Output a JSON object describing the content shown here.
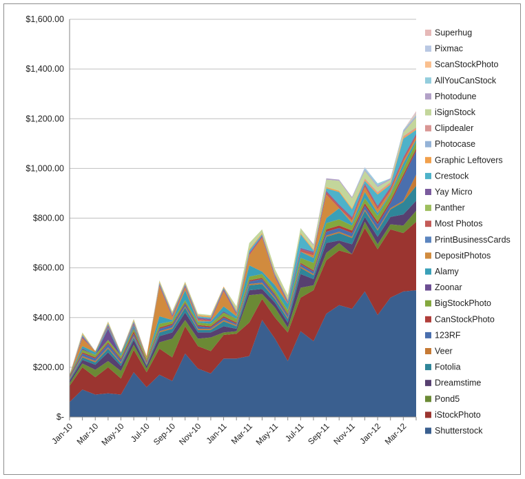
{
  "chart_data": {
    "type": "area",
    "stacked": true,
    "title": "",
    "xlabel": "",
    "ylabel": "",
    "ylim": [
      0,
      1600
    ],
    "yticks": [
      {
        "v": 0,
        "label": "$-"
      },
      {
        "v": 200,
        "label": "$200.00"
      },
      {
        "v": 400,
        "label": "$400.00"
      },
      {
        "v": 600,
        "label": "$600.00"
      },
      {
        "v": 800,
        "label": "$800.00"
      },
      {
        "v": 1000,
        "label": "$1,000.00"
      },
      {
        "v": 1200,
        "label": "$1,200.00"
      },
      {
        "v": 1400,
        "label": "$1,400.00"
      },
      {
        "v": 1600,
        "label": "$1,600.00"
      }
    ],
    "grid": "horizontal",
    "legend_position": "right",
    "x": [
      "Jan-10",
      "Feb-10",
      "Mar-10",
      "Apr-10",
      "May-10",
      "Jun-10",
      "Jul-10",
      "Aug-10",
      "Sep-10",
      "Oct-10",
      "Nov-10",
      "Dec-10",
      "Jan-11",
      "Feb-11",
      "Mar-11",
      "Apr-11",
      "May-11",
      "Jun-11",
      "Jul-11",
      "Aug-11",
      "Sep-11",
      "Oct-11",
      "Nov-11",
      "Dec-11",
      "Jan-12",
      "Feb-12",
      "Mar-12",
      "Apr-12"
    ],
    "xtick_labels": [
      "Jan-10",
      "Mar-10",
      "May-10",
      "Jul-10",
      "Sep-10",
      "Nov-10",
      "Jan-11",
      "Mar-11",
      "May-11",
      "Jul-11",
      "Sep-11",
      "Nov-11",
      "Jan-12",
      "Mar-12"
    ],
    "series": [
      {
        "name": "Shutterstock",
        "color": "#3a5f8f",
        "values": [
          60,
          110,
          90,
          95,
          90,
          180,
          120,
          170,
          145,
          255,
          195,
          175,
          235,
          235,
          245,
          390,
          315,
          225,
          345,
          305,
          415,
          450,
          435,
          505,
          410,
          480,
          505,
          510
        ]
      },
      {
        "name": "iStockPhoto",
        "color": "#9b3530",
        "values": [
          65,
          90,
          70,
          105,
          65,
          90,
          60,
          105,
          95,
          110,
          90,
          90,
          95,
          100,
          135,
          85,
          85,
          115,
          135,
          205,
          215,
          220,
          220,
          255,
          265,
          275,
          235,
          275
        ]
      },
      {
        "name": "Pond5",
        "color": "#6b8a35",
        "values": [
          10,
          15,
          30,
          25,
          30,
          20,
          15,
          25,
          75,
          25,
          30,
          55,
          10,
          10,
          110,
          20,
          40,
          20,
          40,
          20,
          30,
          30,
          0,
          25,
          20,
          20,
          30,
          45
        ]
      },
      {
        "name": "Dreamstime",
        "color": "#574070",
        "values": [
          10,
          15,
          20,
          35,
          20,
          20,
          10,
          25,
          25,
          30,
          25,
          20,
          25,
          10,
          20,
          20,
          20,
          20,
          55,
          25,
          40,
          10,
          40,
          20,
          30,
          30,
          45,
          40
        ]
      },
      {
        "name": "Fotolia",
        "color": "#2f8599",
        "values": [
          5,
          10,
          10,
          15,
          10,
          10,
          5,
          15,
          15,
          20,
          10,
          10,
          20,
          10,
          20,
          20,
          15,
          15,
          25,
          15,
          25,
          30,
          25,
          25,
          25,
          30,
          50,
          60
        ]
      },
      {
        "name": "Veer",
        "color": "#c67a35",
        "values": [
          5,
          5,
          5,
          5,
          5,
          5,
          5,
          5,
          5,
          5,
          5,
          5,
          5,
          5,
          5,
          5,
          5,
          5,
          5,
          5,
          5,
          5,
          5,
          5,
          5,
          5,
          5,
          45
        ]
      },
      {
        "name": "123RF",
        "color": "#4a6fae",
        "values": [
          5,
          10,
          10,
          15,
          10,
          10,
          5,
          10,
          10,
          10,
          10,
          5,
          10,
          5,
          10,
          15,
          10,
          10,
          10,
          10,
          15,
          15,
          15,
          15,
          20,
          20,
          95,
          95
        ]
      },
      {
        "name": "CanStockPhoto",
        "color": "#b03e3a",
        "values": [
          5,
          5,
          5,
          5,
          5,
          10,
          5,
          5,
          5,
          5,
          5,
          5,
          5,
          5,
          5,
          5,
          5,
          5,
          5,
          5,
          10,
          10,
          10,
          10,
          10,
          10,
          10,
          10
        ]
      },
      {
        "name": "BigStockPhoto",
        "color": "#84a83e",
        "values": [
          5,
          10,
          10,
          10,
          10,
          10,
          10,
          15,
          10,
          10,
          10,
          10,
          15,
          15,
          15,
          15,
          15,
          15,
          20,
          30,
          25,
          25,
          20,
          20,
          25,
          25,
          25,
          25
        ]
      },
      {
        "name": "Zoonar",
        "color": "#6c4e92",
        "values": [
          0,
          5,
          0,
          45,
          0,
          5,
          0,
          0,
          0,
          0,
          0,
          0,
          5,
          0,
          0,
          0,
          0,
          0,
          0,
          0,
          0,
          0,
          0,
          0,
          0,
          0,
          0,
          0
        ]
      },
      {
        "name": "Alamy",
        "color": "#3aa0b8",
        "values": [
          0,
          10,
          10,
          5,
          10,
          10,
          0,
          30,
          5,
          40,
          5,
          10,
          20,
          10,
          45,
          10,
          20,
          25,
          25,
          20,
          20,
          45,
          10,
          25,
          10,
          5,
          20,
          10
        ]
      },
      {
        "name": "DepositPhotos",
        "color": "#d18b3e",
        "values": [
          0,
          30,
          5,
          0,
          5,
          0,
          10,
          120,
          10,
          10,
          5,
          0,
          60,
          5,
          40,
          135,
          30,
          0,
          0,
          10,
          95,
          0,
          10,
          20,
          15,
          10,
          10,
          10
        ]
      },
      {
        "name": "PrintBusinessCards",
        "color": "#5c85bf",
        "values": [
          0,
          0,
          0,
          0,
          0,
          0,
          0,
          0,
          0,
          0,
          0,
          0,
          0,
          0,
          0,
          0,
          0,
          0,
          0,
          0,
          0,
          0,
          0,
          0,
          0,
          0,
          0,
          0
        ]
      },
      {
        "name": "Most Photos",
        "color": "#c45b58",
        "values": [
          0,
          5,
          0,
          5,
          0,
          5,
          0,
          5,
          5,
          5,
          5,
          5,
          5,
          5,
          5,
          5,
          5,
          5,
          10,
          10,
          10,
          10,
          10,
          10,
          10,
          10,
          10,
          10
        ]
      },
      {
        "name": "Panther",
        "color": "#9ebf5e",
        "values": [
          0,
          0,
          0,
          0,
          0,
          0,
          0,
          0,
          0,
          0,
          0,
          0,
          0,
          0,
          0,
          0,
          0,
          0,
          0,
          0,
          0,
          0,
          0,
          0,
          0,
          0,
          0,
          0
        ]
      },
      {
        "name": "Yay Micro",
        "color": "#7b5c9e",
        "values": [
          0,
          5,
          0,
          5,
          0,
          5,
          0,
          5,
          5,
          5,
          5,
          5,
          5,
          5,
          5,
          5,
          5,
          5,
          5,
          5,
          5,
          5,
          5,
          5,
          5,
          5,
          5,
          5
        ]
      },
      {
        "name": "Crestock",
        "color": "#4eb2c9",
        "values": [
          0,
          5,
          0,
          5,
          0,
          5,
          0,
          5,
          5,
          5,
          5,
          5,
          5,
          5,
          10,
          5,
          5,
          5,
          55,
          5,
          10,
          50,
          30,
          10,
          45,
          10,
          75,
          15
        ]
      },
      {
        "name": "Graphic Leftovers",
        "color": "#f1a04c",
        "values": [
          0,
          5,
          0,
          5,
          0,
          5,
          0,
          5,
          5,
          5,
          5,
          5,
          5,
          5,
          5,
          5,
          5,
          5,
          5,
          5,
          5,
          5,
          5,
          5,
          5,
          5,
          5,
          5
        ]
      },
      {
        "name": "Photocase",
        "color": "#95b3d7",
        "values": [
          0,
          0,
          0,
          0,
          0,
          0,
          0,
          0,
          0,
          0,
          0,
          0,
          0,
          0,
          0,
          0,
          0,
          0,
          0,
          0,
          0,
          0,
          0,
          0,
          0,
          0,
          0,
          0
        ]
      },
      {
        "name": "Clipdealer",
        "color": "#d99694",
        "values": [
          0,
          0,
          0,
          0,
          0,
          0,
          0,
          0,
          0,
          0,
          0,
          0,
          0,
          0,
          0,
          0,
          0,
          0,
          0,
          0,
          0,
          0,
          0,
          5,
          5,
          5,
          5,
          5
        ]
      },
      {
        "name": "iSignStock",
        "color": "#c3d69b",
        "values": [
          0,
          5,
          0,
          5,
          0,
          5,
          0,
          5,
          5,
          5,
          5,
          5,
          0,
          15,
          25,
          15,
          15,
          15,
          20,
          15,
          30,
          40,
          40,
          30,
          20,
          10,
          15,
          40
        ]
      },
      {
        "name": "Photodune",
        "color": "#b2a1c7",
        "values": [
          0,
          0,
          0,
          0,
          0,
          0,
          0,
          0,
          0,
          0,
          0,
          0,
          0,
          0,
          0,
          0,
          0,
          0,
          0,
          5,
          5,
          5,
          5,
          5,
          5,
          5,
          5,
          5
        ]
      },
      {
        "name": "AllYouCanStock",
        "color": "#93cddd",
        "values": [
          0,
          0,
          0,
          0,
          0,
          0,
          0,
          0,
          0,
          0,
          0,
          0,
          0,
          0,
          0,
          0,
          0,
          0,
          0,
          0,
          0,
          0,
          0,
          5,
          10,
          0,
          5,
          5
        ]
      },
      {
        "name": "ScanStockPhoto",
        "color": "#fac08f",
        "values": [
          0,
          0,
          0,
          0,
          0,
          0,
          0,
          0,
          0,
          0,
          0,
          0,
          0,
          0,
          0,
          0,
          0,
          0,
          0,
          0,
          0,
          0,
          0,
          0,
          0,
          0,
          0,
          5
        ]
      },
      {
        "name": "Pixmac",
        "color": "#b9c8e3",
        "values": [
          0,
          0,
          0,
          0,
          0,
          0,
          0,
          0,
          0,
          0,
          0,
          0,
          0,
          0,
          0,
          0,
          0,
          0,
          0,
          0,
          0,
          0,
          0,
          5,
          0,
          0,
          0,
          5
        ]
      },
      {
        "name": "Superhug",
        "color": "#e6b9b8",
        "values": [
          0,
          0,
          0,
          0,
          0,
          0,
          0,
          0,
          0,
          0,
          0,
          0,
          0,
          0,
          0,
          0,
          0,
          0,
          0,
          0,
          0,
          0,
          0,
          0,
          0,
          0,
          0,
          5
        ]
      }
    ],
    "legend_order": [
      "Superhug",
      "Pixmac",
      "ScanStockPhoto",
      "AllYouCanStock",
      "Photodune",
      "iSignStock",
      "Clipdealer",
      "Photocase",
      "Graphic Leftovers",
      "Crestock",
      "Yay Micro",
      "Panther",
      "Most Photos",
      "PrintBusinessCards",
      "DepositPhotos",
      "Alamy",
      "Zoonar",
      "BigStockPhoto",
      "CanStockPhoto",
      "123RF",
      "Veer",
      "Fotolia",
      "Dreamstime",
      "Pond5",
      "iStockPhoto",
      "Shutterstock"
    ]
  }
}
